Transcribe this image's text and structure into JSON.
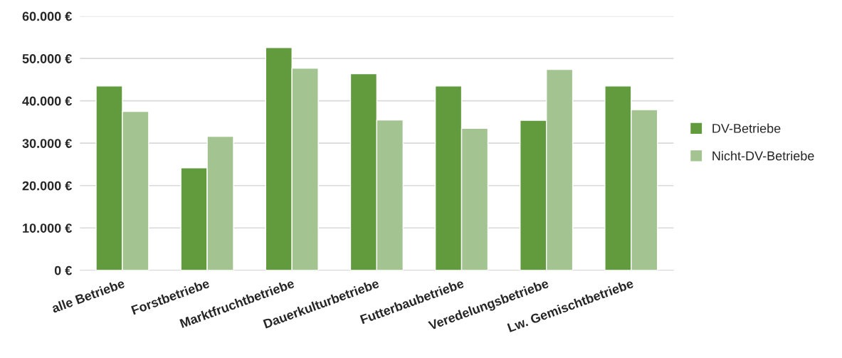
{
  "chart_data": {
    "type": "bar",
    "categories": [
      "alle Betriebe",
      "Forstbetriebe",
      "Marktfruchtbetriebe",
      "Dauerkulturbetriebe",
      "Futterbaubetriebe",
      "Veredelungsbetriebe",
      "Lw. Gemischtbetriebe"
    ],
    "series": [
      {
        "name": "DV-Betriebe",
        "color": "#629a3e",
        "values": [
          43500,
          24200,
          52600,
          46400,
          43500,
          35400,
          43500
        ]
      },
      {
        "name": "Nicht-DV-Betriebe",
        "color": "#a3c491",
        "values": [
          37500,
          31600,
          47700,
          35500,
          33500,
          47400,
          37900
        ]
      }
    ],
    "ylim": [
      0,
      60000
    ],
    "yticks": [
      {
        "value": 0,
        "label": "0 €"
      },
      {
        "value": 10000,
        "label": "10.000 €"
      },
      {
        "value": 20000,
        "label": "20.000 €"
      },
      {
        "value": 30000,
        "label": "30.000 €"
      },
      {
        "value": 40000,
        "label": "40.000 €"
      },
      {
        "value": 50000,
        "label": "50.000 €"
      },
      {
        "value": 60000,
        "label": "60.000 €"
      }
    ],
    "grid": "y",
    "legend": "right"
  }
}
